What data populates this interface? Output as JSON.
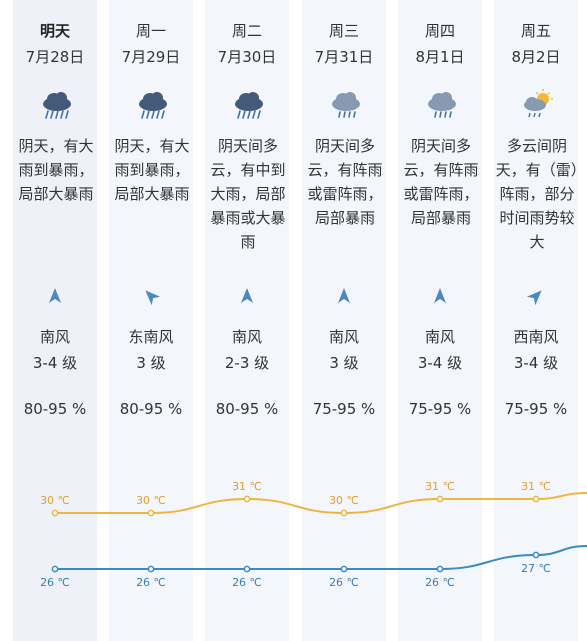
{
  "days": [
    {
      "name": "明天",
      "date": "7月28日",
      "weather_icon": "heavy-rain-icon",
      "description": "阴天，有大雨到暴雨，局部大暴雨",
      "wind_dir": "南风",
      "wind_level": "3-4 级",
      "humidity": "80-95 %",
      "high": "30 ℃",
      "low": "26 ℃",
      "high_value": 30,
      "low_value": 26,
      "wind_angle": 0
    },
    {
      "name": "周一",
      "date": "7月29日",
      "weather_icon": "heavy-rain-icon",
      "description": "阴天，有大雨到暴雨，局部大暴雨",
      "wind_dir": "东南风",
      "wind_level": "3 级",
      "humidity": "80-95 %",
      "high": "30 ℃",
      "low": "26 ℃",
      "high_value": 30,
      "low_value": 26,
      "wind_angle": -45
    },
    {
      "name": "周二",
      "date": "7月30日",
      "weather_icon": "heavy-rain-icon",
      "description": "阴天间多云，有中到大雨，局部暴雨或大暴雨",
      "wind_dir": "南风",
      "wind_level": "2-3 级",
      "humidity": "80-95 %",
      "high": "31 ℃",
      "low": "26 ℃",
      "high_value": 31,
      "low_value": 26,
      "wind_angle": 0
    },
    {
      "name": "周三",
      "date": "7月31日",
      "weather_icon": "rain-icon",
      "description": "阴天间多云，有阵雨或雷阵雨，局部暴雨",
      "wind_dir": "南风",
      "wind_level": "3 级",
      "humidity": "75-95 %",
      "high": "30 ℃",
      "low": "26 ℃",
      "high_value": 30,
      "low_value": 26,
      "wind_angle": 0
    },
    {
      "name": "周四",
      "date": "8月1日",
      "weather_icon": "rain-icon",
      "description": "阴天间多云，有阵雨或雷阵雨，局部暴雨",
      "wind_dir": "南风",
      "wind_level": "3-4 级",
      "humidity": "75-95 %",
      "high": "31 ℃",
      "low": "26 ℃",
      "high_value": 31,
      "low_value": 26,
      "wind_angle": 0
    },
    {
      "name": "周五",
      "date": "8月2日",
      "weather_icon": "sun-cloud-rain-icon",
      "description": "多云间阴天，有（雷）阵雨，部分时间雨势较大",
      "wind_dir": "西南风",
      "wind_level": "3-4 级",
      "humidity": "75-95 %",
      "high": "31 ℃",
      "low": "27 ℃",
      "high_value": 31,
      "low_value": 27,
      "wind_angle": 45
    }
  ],
  "extra_trend": {
    "high_value": 32,
    "low_value": 28
  },
  "colors": {
    "high_line": "#f0b440",
    "low_line": "#3a8bc0",
    "arrow": "#4f88c0",
    "high_text": "#e0a030",
    "low_text": "#3a7eb5",
    "cloud_dark": "#45597a",
    "cloud_light": "#8899b2",
    "rain": "#4a6fa5",
    "sun": "#f5b830"
  }
}
